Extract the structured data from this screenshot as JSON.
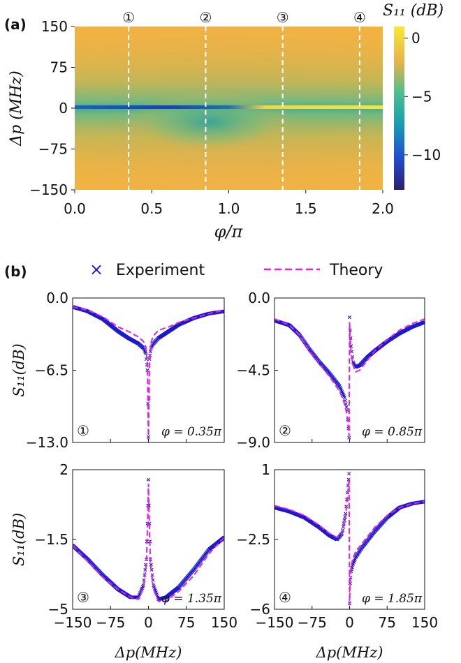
{
  "panel_a": {
    "label": "(a)",
    "colorbar_title": "S₁₁ (dB)",
    "colorbar_ticks": [
      "0",
      "−5",
      "−10"
    ],
    "markers": [
      "①",
      "②",
      "③",
      "④"
    ]
  },
  "panel_b": {
    "label": "(b)",
    "legend": {
      "experiment": "Experiment",
      "theory": "Theory"
    }
  },
  "colors": {
    "experiment": "#1a1acc",
    "theory": "#e61ee6",
    "map_low": "#2a1f6e",
    "map_high": "#f5e838"
  },
  "chart_data": [
    {
      "type": "heatmap",
      "xlabel": "φ/π",
      "ylabel": "Δp (MHz)",
      "xticks": [
        "0.0",
        "0.5",
        "1.0",
        "1.5",
        "2.0"
      ],
      "yticks": [
        "150",
        "75",
        "0",
        "−75",
        "−150"
      ],
      "xlim": [
        0,
        2
      ],
      "ylim": [
        -150,
        150
      ],
      "zlim": [
        -13,
        1
      ],
      "zlabel": "S₁₁ (dB)",
      "vertical_lines": [
        0.35,
        0.85,
        1.35,
        1.85
      ],
      "vertical_line_labels": [
        "①",
        "②",
        "③",
        "④"
      ]
    },
    {
      "type": "line",
      "panel": "①",
      "annotation": "φ = 0.35π",
      "ylabel": "S₁₁(dB)",
      "xlim": [
        -150,
        150
      ],
      "ylim": [
        -13,
        0
      ],
      "yticks": [
        "0.0",
        "−6.5",
        "−13.0"
      ],
      "series": [
        {
          "name": "Experiment",
          "x": [
            -150,
            -120,
            -90,
            -60,
            -40,
            -20,
            -10,
            -5,
            -2,
            0,
            2,
            5,
            10,
            20,
            40,
            60,
            90,
            120,
            150
          ],
          "y": [
            -0.8,
            -1.2,
            -1.9,
            -3.0,
            -3.6,
            -4.1,
            -4.5,
            -5.0,
            -6.5,
            -12.5,
            -5.5,
            -4.5,
            -4.1,
            -3.6,
            -3.0,
            -2.4,
            -1.8,
            -1.4,
            -1.2
          ]
        },
        {
          "name": "Theory",
          "x": [
            -150,
            -120,
            -90,
            -60,
            -40,
            -20,
            -10,
            -5,
            -2,
            0,
            2,
            5,
            10,
            20,
            40,
            60,
            90,
            120,
            150
          ],
          "y": [
            -0.8,
            -1.1,
            -1.7,
            -2.6,
            -3.0,
            -3.5,
            -3.9,
            -4.4,
            -6.0,
            -12.8,
            -6.0,
            -4.0,
            -3.4,
            -2.9,
            -2.6,
            -2.2,
            -1.8,
            -1.4,
            -1.1
          ]
        }
      ]
    },
    {
      "type": "line",
      "panel": "②",
      "annotation": "φ = 0.85π",
      "ylabel": "",
      "xlim": [
        -150,
        150
      ],
      "ylim": [
        -9,
        0
      ],
      "yticks": [
        "0.0",
        "−4.5",
        "−9.0"
      ],
      "series": [
        {
          "name": "Experiment",
          "x": [
            -150,
            -120,
            -100,
            -80,
            -60,
            -40,
            -20,
            -10,
            -5,
            -1,
            0,
            1,
            3,
            7,
            12,
            20,
            35,
            50,
            75,
            100,
            125,
            150
          ],
          "y": [
            -1.4,
            -1.7,
            -2.3,
            -3.2,
            -4.0,
            -4.7,
            -5.5,
            -6.2,
            -7.0,
            -8.7,
            -1.2,
            -2.0,
            -3.0,
            -4.0,
            -4.3,
            -4.2,
            -3.7,
            -3.3,
            -2.7,
            -2.2,
            -1.8,
            -1.5
          ]
        },
        {
          "name": "Theory",
          "x": [
            -150,
            -120,
            -100,
            -80,
            -60,
            -40,
            -20,
            -10,
            -5,
            -1,
            0,
            1,
            3,
            7,
            12,
            20,
            35,
            50,
            75,
            100,
            125,
            150
          ],
          "y": [
            -1.3,
            -1.7,
            -2.3,
            -3.3,
            -4.1,
            -4.9,
            -5.8,
            -6.6,
            -7.3,
            -8.6,
            -1.5,
            -2.4,
            -3.4,
            -4.2,
            -4.6,
            -4.5,
            -3.9,
            -3.3,
            -2.6,
            -2.0,
            -1.6,
            -1.3
          ]
        }
      ]
    },
    {
      "type": "line",
      "panel": "③",
      "annotation": "φ = 1.35π",
      "ylabel": "S₁₁(dB)",
      "xlim": [
        -150,
        150
      ],
      "ylim": [
        -5,
        2
      ],
      "yticks": [
        "2",
        "−1.5",
        "−5"
      ],
      "series": [
        {
          "name": "Experiment",
          "x": [
            -150,
            -120,
            -90,
            -60,
            -35,
            -20,
            -10,
            -4,
            -1,
            0,
            1,
            4,
            10,
            20,
            35,
            60,
            90,
            120,
            150
          ],
          "y": [
            -1.8,
            -2.5,
            -3.3,
            -4.0,
            -4.4,
            -4.4,
            -3.8,
            -2.5,
            0.2,
            1.5,
            0.2,
            -2.5,
            -3.8,
            -4.5,
            -4.4,
            -3.9,
            -3.0,
            -2.0,
            -1.4
          ]
        },
        {
          "name": "Theory",
          "x": [
            -150,
            -120,
            -90,
            -60,
            -35,
            -20,
            -10,
            -4,
            -1,
            0,
            1,
            4,
            10,
            20,
            35,
            60,
            90,
            120,
            150
          ],
          "y": [
            -1.8,
            -2.6,
            -3.4,
            -4.0,
            -4.4,
            -4.5,
            -3.9,
            -2.7,
            0.0,
            1.3,
            0.0,
            -2.7,
            -4.0,
            -4.6,
            -4.6,
            -4.1,
            -3.3,
            -2.2,
            -1.4
          ]
        }
      ]
    },
    {
      "type": "line",
      "panel": "④",
      "annotation": "φ = 1.85π",
      "ylabel": "",
      "xlim": [
        -150,
        150
      ],
      "ylim": [
        -6,
        1
      ],
      "yticks": [
        "1",
        "−2.5",
        "−6"
      ],
      "series": [
        {
          "name": "Experiment",
          "x": [
            -150,
            -120,
            -90,
            -60,
            -40,
            -25,
            -15,
            -8,
            -3,
            -1,
            0,
            1,
            3,
            6,
            12,
            25,
            50,
            75,
            100,
            125,
            150
          ],
          "y": [
            -0.9,
            -1.1,
            -1.4,
            -1.9,
            -2.3,
            -2.5,
            -2.2,
            -1.2,
            0.2,
            0.8,
            -5.7,
            -4.7,
            -4.1,
            -3.8,
            -3.4,
            -2.9,
            -2.1,
            -1.4,
            -0.9,
            -0.7,
            -0.6
          ]
        },
        {
          "name": "Theory",
          "x": [
            -150,
            -120,
            -90,
            -60,
            -40,
            -25,
            -15,
            -8,
            -3,
            -1,
            0,
            1,
            3,
            6,
            12,
            25,
            50,
            75,
            100,
            125,
            150
          ],
          "y": [
            -0.8,
            -1.0,
            -1.3,
            -1.8,
            -2.2,
            -2.4,
            -2.2,
            -1.3,
            0.0,
            0.6,
            -5.8,
            -4.8,
            -3.9,
            -3.5,
            -3.1,
            -2.7,
            -1.9,
            -1.3,
            -0.9,
            -0.7,
            -0.6
          ]
        }
      ]
    }
  ]
}
